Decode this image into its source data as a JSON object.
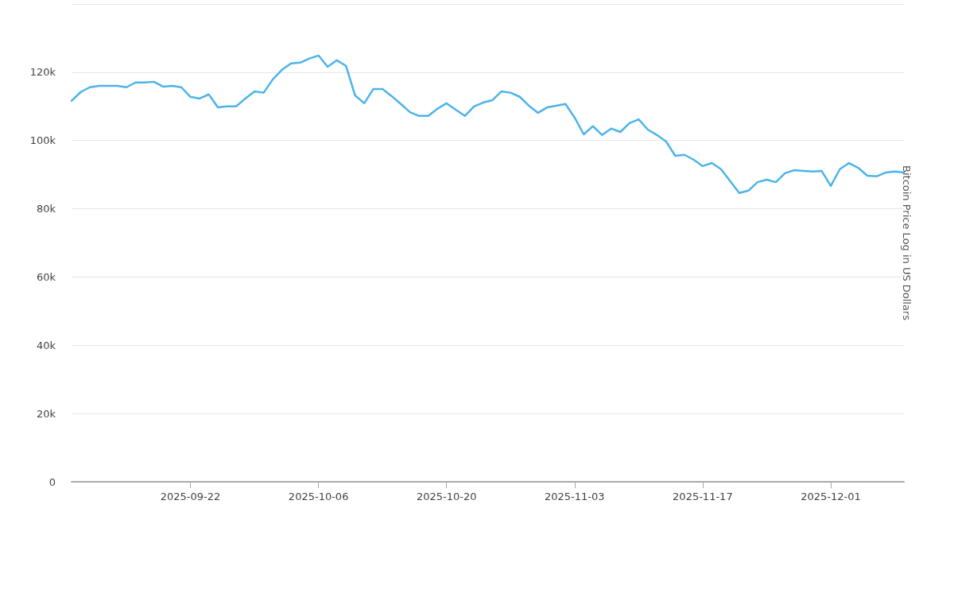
{
  "chart_data": {
    "type": "line",
    "ylabel": "Bitcoin Price Log in US Dollars",
    "x": [
      "2025-09-09",
      "2025-09-10",
      "2025-09-11",
      "2025-09-12",
      "2025-09-13",
      "2025-09-14",
      "2025-09-15",
      "2025-09-16",
      "2025-09-17",
      "2025-09-18",
      "2025-09-19",
      "2025-09-20",
      "2025-09-21",
      "2025-09-22",
      "2025-09-23",
      "2025-09-24",
      "2025-09-25",
      "2025-09-26",
      "2025-09-27",
      "2025-09-28",
      "2025-09-29",
      "2025-09-30",
      "2025-10-01",
      "2025-10-02",
      "2025-10-03",
      "2025-10-04",
      "2025-10-05",
      "2025-10-06",
      "2025-10-07",
      "2025-10-08",
      "2025-10-09",
      "2025-10-10",
      "2025-10-11",
      "2025-10-12",
      "2025-10-13",
      "2025-10-14",
      "2025-10-15",
      "2025-10-16",
      "2025-10-17",
      "2025-10-18",
      "2025-10-19",
      "2025-10-20",
      "2025-10-21",
      "2025-10-22",
      "2025-10-23",
      "2025-10-24",
      "2025-10-25",
      "2025-10-26",
      "2025-10-27",
      "2025-10-28",
      "2025-10-29",
      "2025-10-30",
      "2025-10-31",
      "2025-11-01",
      "2025-11-02",
      "2025-11-03",
      "2025-11-04",
      "2025-11-05",
      "2025-11-06",
      "2025-11-07",
      "2025-11-08",
      "2025-11-09",
      "2025-11-10",
      "2025-11-11",
      "2025-11-12",
      "2025-11-13",
      "2025-11-14",
      "2025-11-15",
      "2025-11-16",
      "2025-11-17",
      "2025-11-18",
      "2025-11-19",
      "2025-11-20",
      "2025-11-21",
      "2025-11-22",
      "2025-11-23",
      "2025-11-24",
      "2025-11-25",
      "2025-11-26",
      "2025-11-27",
      "2025-11-28",
      "2025-11-29",
      "2025-11-30",
      "2025-12-01",
      "2025-12-02",
      "2025-12-03",
      "2025-12-04",
      "2025-12-05",
      "2025-12-06",
      "2025-12-07",
      "2025-12-08",
      "2025-12-09"
    ],
    "series": [
      {
        "color": "#4cb3ea",
        "values": [
          111600,
          114200,
          115600,
          116000,
          116000,
          116000,
          115600,
          117000,
          117000,
          117200,
          115800,
          116000,
          115600,
          112800,
          112300,
          113500,
          109700,
          110000,
          110000,
          112300,
          114400,
          114000,
          117900,
          120700,
          122600,
          122800,
          124000,
          124900,
          121600,
          123500,
          121900,
          113200,
          110900,
          115100,
          115100,
          113000,
          110700,
          108300,
          107200,
          107200,
          109300,
          110900,
          109000,
          107200,
          110000,
          111100,
          111800,
          114400,
          114000,
          112800,
          110200,
          108100,
          109700,
          110200,
          110700,
          106700,
          101800,
          104200,
          101600,
          103500,
          102500,
          105100,
          106200,
          103200,
          101600,
          99700,
          95500,
          95800,
          94400,
          92500,
          93400,
          91600,
          88100,
          84600,
          85300,
          87800,
          88500,
          87800,
          90400,
          91300,
          91100,
          90900,
          91100,
          86700,
          91600,
          93400,
          92000,
          89700,
          89500,
          90600,
          90900,
          90600
        ]
      }
    ],
    "xlim": [
      "2025-09-09",
      "2025-12-09"
    ],
    "xticks": [
      "2025-09-22",
      "2025-10-06",
      "2025-10-20",
      "2025-11-03",
      "2025-11-17",
      "2025-12-01"
    ],
    "ylim": [
      0,
      140000
    ],
    "yticks": [
      0,
      {
        "value": 20000,
        "label": "20k"
      },
      {
        "value": 40000,
        "label": "40k"
      },
      {
        "value": 60000,
        "label": "60k"
      },
      {
        "value": 80000,
        "label": "80k"
      },
      {
        "value": 100000,
        "label": "100k"
      },
      {
        "value": 120000,
        "label": "120k"
      },
      {
        "value": 140000,
        "label": null
      }
    ],
    "grid": "y",
    "marker": "none",
    "line_style": "solid"
  }
}
